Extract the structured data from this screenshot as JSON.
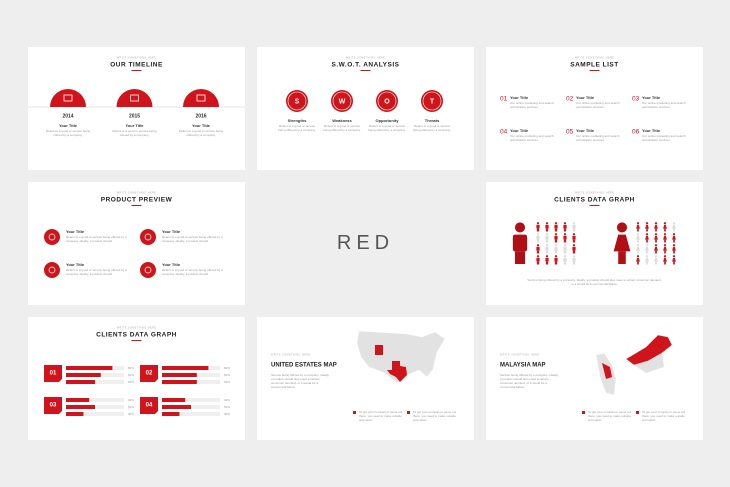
{
  "slides": [
    {
      "kicker": "WRITE SOMETHING HERE",
      "title": "OUR TIMELINE",
      "items": [
        {
          "year": "2014",
          "heading": "Your Title",
          "text": "Refers to a good or service being offered by a company."
        },
        {
          "year": "2015",
          "heading": "Your Title",
          "text": "Refers to a good or service being offered by a company."
        },
        {
          "year": "2016",
          "heading": "Your Title",
          "text": "Refers to a good or service being offered by a company."
        }
      ]
    },
    {
      "kicker": "WRITE SOMETHING HERE",
      "title": "S.W.O.T. ANALYSIS",
      "items": [
        {
          "letter": "S",
          "heading": "Strengths",
          "text": "Refers to a good or service being offered by a company."
        },
        {
          "letter": "W",
          "heading": "Weakness",
          "text": "Refers to a good or service being offered by a company."
        },
        {
          "letter": "O",
          "heading": "Opportunity",
          "text": "Refers to a good or service being offered by a company."
        },
        {
          "letter": "T",
          "heading": "Threats",
          "text": "Refers to a good or service being offered by a company."
        }
      ]
    },
    {
      "kicker": "WRITE SOMETHING HERE",
      "title": "SAMPLE LIST",
      "items": [
        {
          "number": "01",
          "heading": "Your Title",
          "text": "Our online marketing and search optimization services."
        },
        {
          "number": "02",
          "heading": "Your Title",
          "text": "Our online marketing and search optimization services."
        },
        {
          "number": "03",
          "heading": "Your Title",
          "text": "Our online marketing and search optimization services."
        },
        {
          "number": "04",
          "heading": "Your Title",
          "text": "Our online marketing and search optimization services."
        },
        {
          "number": "05",
          "heading": "Your Title",
          "text": "Our online marketing and search optimization services."
        },
        {
          "number": "06",
          "heading": "Your Title",
          "text": "Our online marketing and search optimization services."
        }
      ]
    },
    {
      "kicker": "WRITE SOMETHING HERE",
      "title": "PRODUCT PREVIEW",
      "items": [
        {
          "heading": "Your Title",
          "text": "Refers to a good or service being offered by a company. Ideally, a product should"
        },
        {
          "heading": "Your Title",
          "text": "Refers to a good or service being offered by a company. Ideally, a product should"
        },
        {
          "heading": "Your Title",
          "text": "Refers to a good or service being offered by a company. Ideally, a product should"
        },
        {
          "heading": "Your Title",
          "text": "Refers to a good or service being offered by a company. Ideally, a product should"
        }
      ]
    },
    {
      "title": "RED"
    },
    {
      "kicker": "WRITE SOMETHING HERE",
      "title": "CLIENTS DATA GRAPH",
      "text": "Service being offered by a company. Ideally, a product should also meet a certain consumer demand, or it would be a commercial failure."
    },
    {
      "kicker": "WRITE SOMETHING HERE",
      "title": "CLIENTS DATA GRAPH",
      "groups": [
        {
          "number": "01",
          "bars": [
            {
              "value": 80,
              "label": "80%"
            },
            {
              "value": 60,
              "label": "60%"
            },
            {
              "value": 50,
              "label": "50%"
            }
          ]
        },
        {
          "number": "02",
          "bars": [
            {
              "value": 80,
              "label": "80%"
            },
            {
              "value": 60,
              "label": "60%"
            },
            {
              "value": 60,
              "label": "60%"
            }
          ]
        },
        {
          "number": "03",
          "bars": [
            {
              "value": 40,
              "label": "40%"
            },
            {
              "value": 50,
              "label": "50%"
            },
            {
              "value": 30,
              "label": "30%"
            }
          ]
        },
        {
          "number": "04",
          "bars": [
            {
              "value": 40,
              "label": "40%"
            },
            {
              "value": 50,
              "label": "50%"
            },
            {
              "value": 30,
              "label": "30%"
            }
          ]
        }
      ]
    },
    {
      "kicker": "WRITE SOMETHING HERE",
      "title": "UNITED ESTATES MAP",
      "text": "Service being offered by a company. Ideally, a product should also meet a certain consumer demand, or it would be a commercial failure.",
      "legend": [
        "To get your company's name out there, you need to make outside promotion.",
        "To get your company's name out there, you need to make outside promotion."
      ]
    },
    {
      "kicker": "WRITE SOMETHING HERE",
      "title": "MALAYSIA MAP",
      "text": "Service being offered by a company. Ideally, a product should also meet a certain consumer demand, or it would be a commercial failure.",
      "legend": [
        "To get your company's name out there, you need to make outside promotion.",
        "To get your company's name out there, you need to make outside promotion."
      ]
    }
  ]
}
